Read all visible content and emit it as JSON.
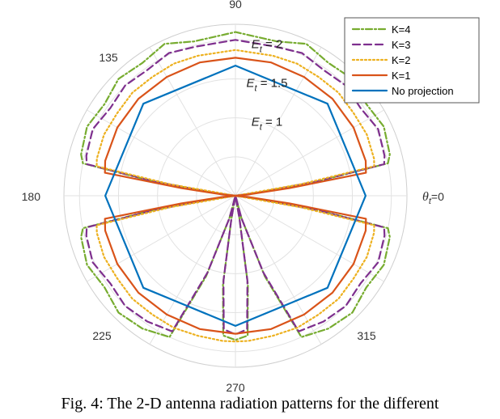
{
  "chart_data": {
    "type": "polar-line",
    "angle_ticks": [
      "90",
      "135",
      "180",
      "225",
      "270",
      "315"
    ],
    "zero_label": {
      "base": "θ",
      "sub": "t",
      "suffix": "=0"
    },
    "radial_labels": [
      {
        "value": 1,
        "base": "E",
        "sub": "t",
        "suffix": " = 1"
      },
      {
        "value": 1.5,
        "base": "E",
        "sub": "t",
        "suffix": " = 1.5"
      },
      {
        "value": 2,
        "base": "E",
        "sub": "t",
        "suffix": " = 2"
      }
    ],
    "rlim": [
      0,
      2.2
    ],
    "grid": true,
    "legend_position": "top-right",
    "series": [
      {
        "name": "K=4",
        "color": "#77AC30",
        "dash": "dash-dot",
        "angles": [
          0,
          8,
          10,
          12,
          15,
          25,
          35,
          45,
          55,
          65,
          75,
          90,
          105,
          115,
          125,
          135,
          145,
          155,
          165,
          168,
          170,
          172,
          180,
          188,
          190,
          192,
          195,
          205,
          215,
          225,
          235,
          245,
          250,
          255,
          258,
          260,
          262,
          265,
          270,
          275,
          278,
          280,
          282,
          285,
          290,
          295,
          305,
          315,
          325,
          335,
          345,
          348,
          350,
          352
        ],
        "r": [
          0.0,
          0.3,
          1.1,
          2.0,
          2.05,
          2.1,
          2.05,
          2.12,
          2.08,
          2.15,
          2.05,
          2.1,
          2.05,
          2.15,
          2.08,
          2.12,
          2.05,
          2.1,
          2.05,
          2.0,
          1.1,
          0.3,
          0.0,
          0.3,
          1.1,
          2.0,
          2.05,
          2.1,
          2.05,
          2.12,
          2.08,
          2.0,
          1.1,
          0.3,
          0.0,
          0.3,
          1.15,
          1.8,
          1.85,
          1.8,
          1.15,
          0.3,
          0.0,
          0.3,
          1.1,
          2.0,
          2.08,
          2.12,
          2.05,
          2.1,
          2.05,
          2.0,
          1.1,
          0.3
        ]
      },
      {
        "name": "K=3",
        "color": "#7E2F8E",
        "dash": "dashed",
        "angles": [
          0,
          8,
          10,
          12,
          15,
          25,
          35,
          45,
          55,
          65,
          75,
          90,
          105,
          115,
          125,
          135,
          145,
          155,
          165,
          168,
          170,
          172,
          180,
          188,
          190,
          192,
          195,
          205,
          215,
          225,
          235,
          245,
          250,
          255,
          258,
          260,
          262,
          265,
          270,
          275,
          278,
          280,
          282,
          285,
          290,
          295,
          305,
          315,
          325,
          335,
          345,
          348,
          350,
          352
        ],
        "r": [
          0.0,
          0.3,
          1.05,
          1.95,
          1.98,
          2.02,
          1.96,
          2.0,
          1.97,
          2.02,
          1.98,
          2.0,
          1.98,
          2.02,
          1.97,
          2.0,
          1.96,
          2.02,
          1.98,
          1.95,
          1.05,
          0.3,
          0.0,
          0.3,
          1.05,
          1.95,
          1.98,
          2.02,
          1.96,
          2.0,
          1.97,
          1.92,
          1.05,
          0.3,
          0.0,
          0.3,
          1.1,
          1.72,
          1.78,
          1.72,
          1.1,
          0.3,
          0.0,
          0.3,
          1.05,
          1.92,
          1.97,
          2.0,
          1.96,
          2.02,
          1.98,
          1.95,
          1.05,
          0.3
        ]
      },
      {
        "name": "K=2",
        "color": "#EDB120",
        "dash": "dotted",
        "angles": [
          0,
          10,
          12,
          15,
          25,
          35,
          45,
          55,
          65,
          75,
          90,
          105,
          115,
          125,
          135,
          145,
          155,
          165,
          168,
          170,
          180,
          190,
          192,
          195,
          205,
          215,
          225,
          235,
          245,
          255,
          265,
          270,
          275,
          285,
          295,
          305,
          315,
          325,
          335,
          345,
          348,
          350
        ],
        "r": [
          0.0,
          0.85,
          1.82,
          1.84,
          1.86,
          1.85,
          1.87,
          1.86,
          1.87,
          1.86,
          1.87,
          1.86,
          1.87,
          1.86,
          1.87,
          1.85,
          1.86,
          1.84,
          1.82,
          0.85,
          0.0,
          0.85,
          1.82,
          1.84,
          1.86,
          1.85,
          1.87,
          1.86,
          1.87,
          1.86,
          1.87,
          1.87,
          1.87,
          1.86,
          1.87,
          1.86,
          1.87,
          1.85,
          1.86,
          1.84,
          1.82,
          0.85
        ]
      },
      {
        "name": "K=1",
        "color": "#D95319",
        "dash": "solid",
        "angles": [
          0,
          5,
          8,
          10,
          15,
          30,
          45,
          60,
          75,
          90,
          105,
          120,
          135,
          150,
          165,
          170,
          172,
          175,
          180,
          185,
          188,
          190,
          195,
          210,
          225,
          240,
          255,
          270,
          285,
          300,
          315,
          330,
          345,
          350,
          352,
          355
        ],
        "r": [
          0.0,
          0.15,
          0.7,
          1.7,
          1.73,
          1.75,
          1.76,
          1.76,
          1.77,
          1.77,
          1.77,
          1.76,
          1.76,
          1.75,
          1.73,
          1.7,
          0.7,
          0.15,
          0.0,
          0.15,
          0.7,
          1.7,
          1.73,
          1.75,
          1.76,
          1.76,
          1.77,
          1.77,
          1.77,
          1.76,
          1.76,
          1.75,
          1.73,
          1.7,
          0.7,
          0.15
        ]
      },
      {
        "name": "No projection",
        "color": "#0072BD",
        "dash": "solid",
        "angles": [
          0,
          45,
          90,
          135,
          180,
          225,
          270,
          315
        ],
        "r": [
          1.67,
          1.67,
          1.67,
          1.67,
          1.67,
          1.67,
          1.67,
          1.67
        ]
      }
    ]
  },
  "caption": "Fig. 4: The 2-D antenna radiation patterns for the different"
}
